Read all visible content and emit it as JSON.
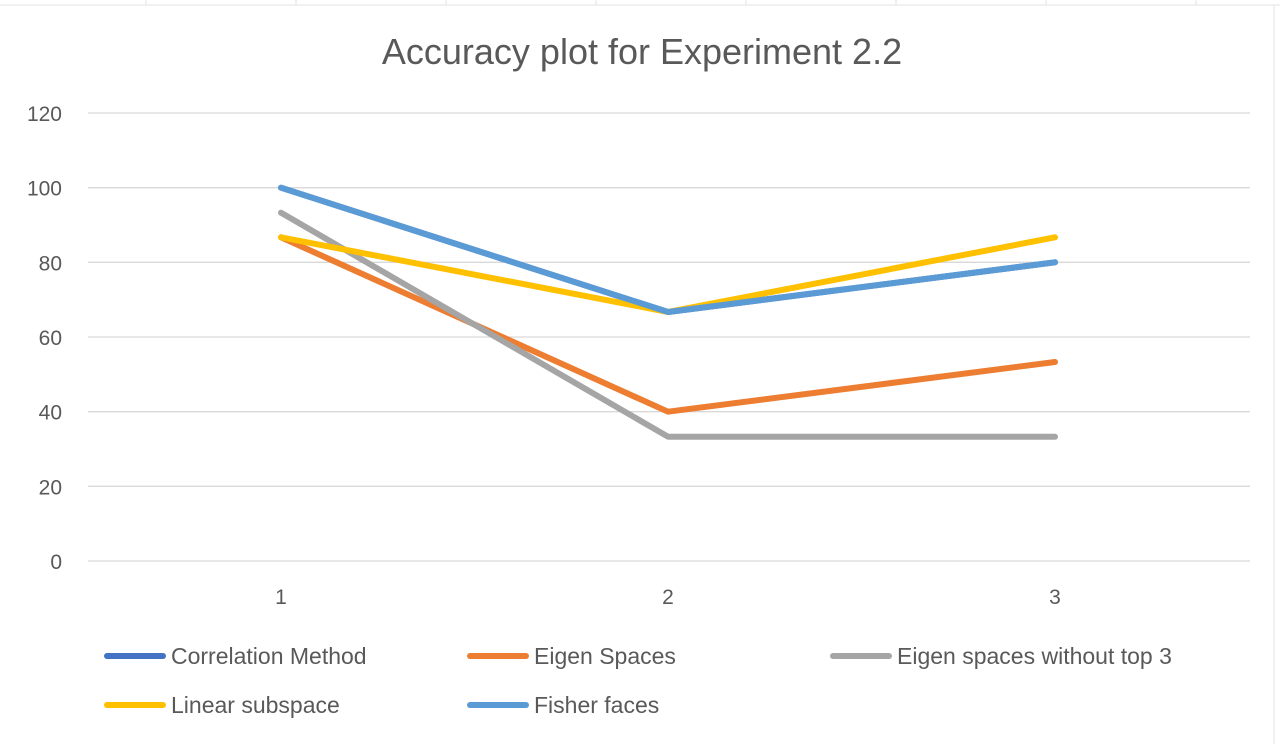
{
  "chart_data": {
    "type": "line",
    "title": "Accuracy plot for Experiment 2.2",
    "xlabel": "",
    "ylabel": "",
    "categories": [
      "1",
      "2",
      "3"
    ],
    "ylim": [
      0,
      120
    ],
    "yticks": [
      0,
      20,
      40,
      60,
      80,
      100,
      120
    ],
    "grid": true,
    "legend_position": "bottom",
    "series": [
      {
        "name": "Correlation Method",
        "color": "#4472c4",
        "values": [
          100,
          66.7,
          80
        ]
      },
      {
        "name": "Eigen Spaces",
        "color": "#ed7d31",
        "values": [
          86.7,
          40,
          53.3
        ]
      },
      {
        "name": "Eigen spaces without top 3",
        "color": "#a5a5a5",
        "values": [
          93.3,
          33.3,
          33.3
        ]
      },
      {
        "name": "Linear subspace",
        "color": "#ffc000",
        "values": [
          86.7,
          66.7,
          86.7
        ]
      },
      {
        "name": "Fisher faces",
        "color": "#5b9bd5",
        "values": [
          100,
          66.7,
          80
        ]
      }
    ]
  }
}
